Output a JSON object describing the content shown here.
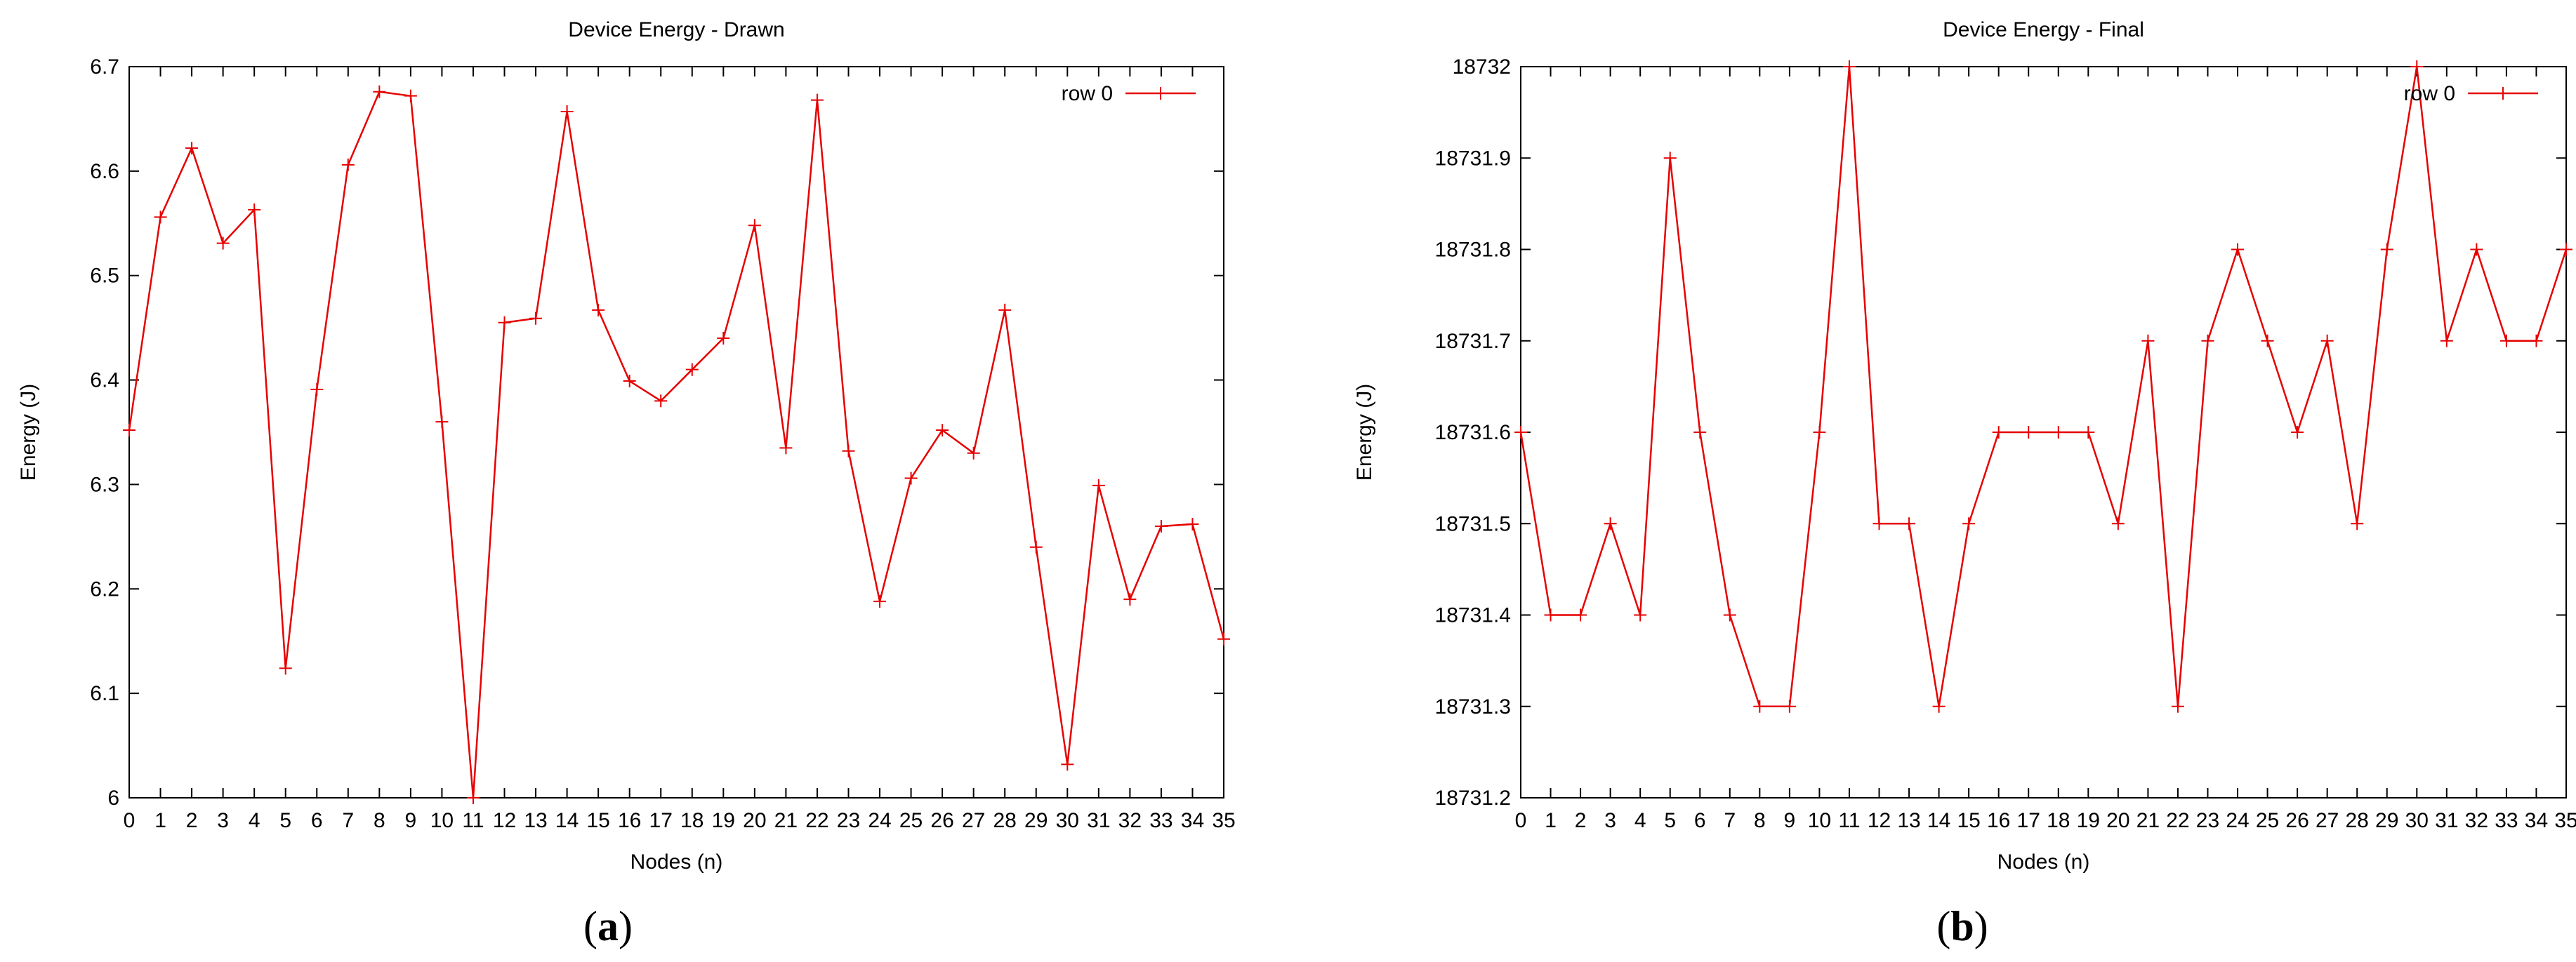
{
  "chart_data": [
    {
      "type": "line",
      "title": "Device Energy - Drawn",
      "xlabel": "Nodes (n)",
      "ylabel": "Energy (J)",
      "xlim": [
        0,
        35
      ],
      "ylim": [
        6,
        6.7
      ],
      "x_ticks": [
        "0",
        "1",
        "2",
        "3",
        "4",
        "5",
        "6",
        "7",
        "8",
        "9",
        "10",
        "11",
        "12",
        "13",
        "14",
        "15",
        "16",
        "17",
        "18",
        "19",
        "20",
        "21",
        "22",
        "23",
        "24",
        "25",
        "26",
        "27",
        "28",
        "29",
        "30",
        "31",
        "32",
        "33",
        "34",
        "35"
      ],
      "y_ticks": [
        "6",
        "6.1",
        "6.2",
        "6.3",
        "6.4",
        "6.5",
        "6.6",
        "6.7"
      ],
      "grid": false,
      "legend_position": "top-right",
      "series_color": "#e60000",
      "series": [
        {
          "name": "row 0",
          "x": [
            0,
            1,
            2,
            3,
            4,
            5,
            6,
            7,
            8,
            9,
            10,
            11,
            12,
            13,
            14,
            15,
            16,
            17,
            18,
            19,
            20,
            21,
            22,
            23,
            24,
            25,
            26,
            27,
            28,
            29,
            30,
            31,
            32,
            33,
            34,
            35
          ],
          "values": [
            6.352,
            6.556,
            6.622,
            6.531,
            6.563,
            6.124,
            6.391,
            6.606,
            6.676,
            6.672,
            6.36,
            6.0,
            6.455,
            6.459,
            6.657,
            6.467,
            6.399,
            6.38,
            6.41,
            6.44,
            6.548,
            6.335,
            6.668,
            6.332,
            6.188,
            6.306,
            6.352,
            6.33,
            6.467,
            6.24,
            6.032,
            6.299,
            6.19,
            6.26,
            6.262,
            6.152
          ]
        }
      ],
      "caption_letter": "a"
    },
    {
      "type": "line",
      "title": "Device Energy - Final",
      "xlabel": "Nodes (n)",
      "ylabel": "Energy (J)",
      "xlim": [
        0,
        35
      ],
      "ylim": [
        18731.2,
        18732
      ],
      "x_ticks": [
        "0",
        "1",
        "2",
        "3",
        "4",
        "5",
        "6",
        "7",
        "8",
        "9",
        "10",
        "11",
        "12",
        "13",
        "14",
        "15",
        "16",
        "17",
        "18",
        "19",
        "20",
        "21",
        "22",
        "23",
        "24",
        "25",
        "26",
        "27",
        "28",
        "29",
        "30",
        "31",
        "32",
        "33",
        "34",
        "35"
      ],
      "y_ticks": [
        "18731.2",
        "18731.3",
        "18731.4",
        "18731.5",
        "18731.6",
        "18731.7",
        "18731.8",
        "18731.9",
        "18732"
      ],
      "grid": false,
      "legend_position": "top-right",
      "series_color": "#e60000",
      "series": [
        {
          "name": "row 0",
          "x": [
            0,
            1,
            2,
            3,
            4,
            5,
            6,
            7,
            8,
            9,
            10,
            11,
            12,
            13,
            14,
            15,
            16,
            17,
            18,
            19,
            20,
            21,
            22,
            23,
            24,
            25,
            26,
            27,
            28,
            29,
            30,
            31,
            32,
            33,
            34,
            35
          ],
          "values": [
            18731.6,
            18731.4,
            18731.4,
            18731.5,
            18731.4,
            18731.9,
            18731.6,
            18731.4,
            18731.3,
            18731.3,
            18731.6,
            18732.0,
            18731.5,
            18731.5,
            18731.3,
            18731.5,
            18731.6,
            18731.6,
            18731.6,
            18731.6,
            18731.5,
            18731.7,
            18731.3,
            18731.7,
            18731.8,
            18731.7,
            18731.6,
            18731.7,
            18731.5,
            18731.8,
            18732.0,
            18731.7,
            18731.8,
            18731.7,
            18731.7,
            18731.8
          ]
        }
      ],
      "caption_letter": "b"
    }
  ]
}
